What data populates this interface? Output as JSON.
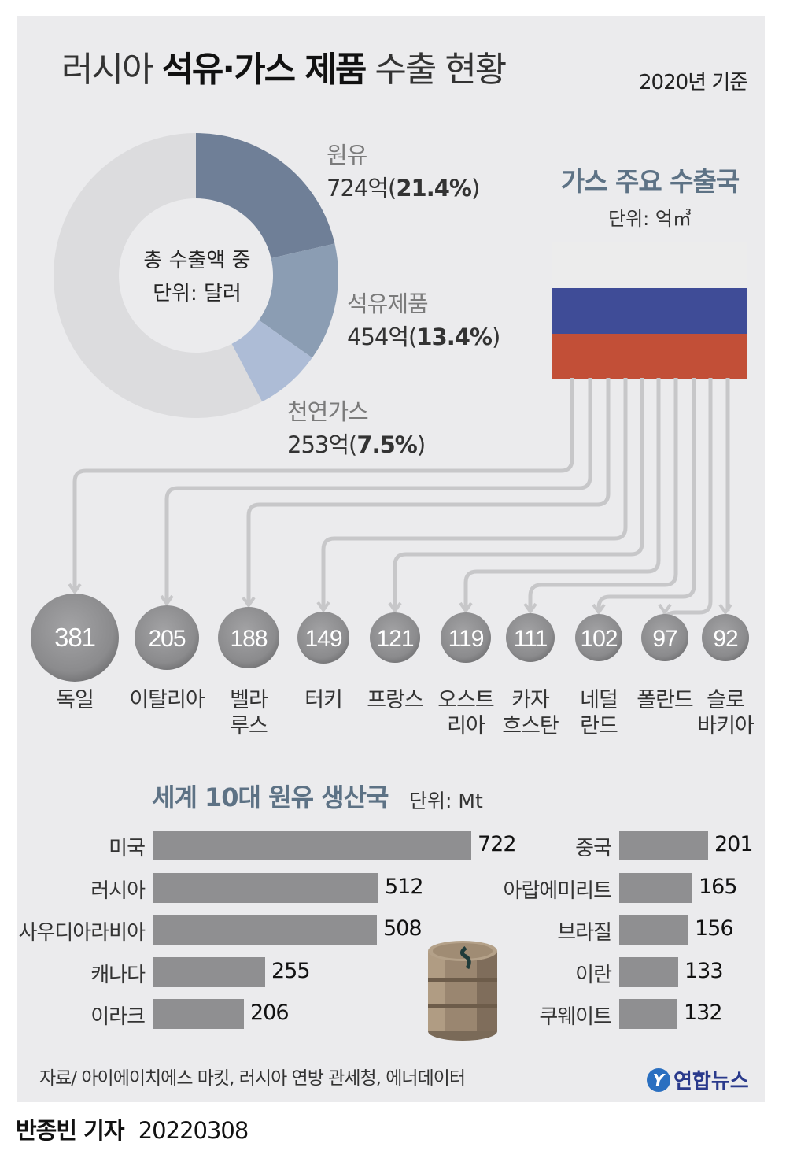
{
  "header": {
    "title_prefix": "러시아",
    "title_bold": "석유·가스 제품",
    "title_suffix": "수출 현황",
    "basis": "2020년 기준"
  },
  "donut": {
    "center_line1": "총 수출액 중",
    "center_line2": "단위: 달러",
    "segments": [
      {
        "name": "원유",
        "amount": "724억",
        "pct_text": "21.4%",
        "value": 21.4,
        "color": "#6f7f97"
      },
      {
        "name": "석유제품",
        "amount": "454억",
        "pct_text": "13.4%",
        "value": 13.4,
        "color": "#8b9db3"
      },
      {
        "name": "천연가스",
        "amount": "253억",
        "pct_text": "7.5%",
        "value": 7.5,
        "color": "#adbcd6"
      }
    ],
    "remainder_color": "#dcdcde"
  },
  "gas_exports": {
    "title": "가스 주요 수출국",
    "unit": "단위: 억㎥",
    "flag_colors": [
      "#ececec",
      "#3f4c97",
      "#c24f37"
    ]
  },
  "chart_data": [
    {
      "type": "pie",
      "title": "",
      "categories": [
        "원유",
        "석유제품",
        "천연가스"
      ],
      "values": [
        21.4,
        13.4,
        7.5
      ],
      "amounts": [
        "724억",
        "454억",
        "253억"
      ]
    },
    {
      "type": "bar",
      "title": "가스 주요 수출국",
      "unit": "단위: 억㎥",
      "categories": [
        "독일",
        "이탈리아",
        "벨라\n루스",
        "터키",
        "프랑스",
        "오스트\n리아",
        "카자\n흐스탄",
        "네덜\n란드",
        "폴란드",
        "슬로\n바키아"
      ],
      "values": [
        381,
        205,
        188,
        149,
        121,
        119,
        111,
        102,
        97,
        92
      ]
    },
    {
      "type": "bar",
      "title": "세계 10대 원유 생산국",
      "unit": "단위:  Mt",
      "categories": [
        "미국",
        "러시아",
        "사우디아라비아",
        "캐나다",
        "이라크",
        "중국",
        "아랍에미리트",
        "브라질",
        "이란",
        "쿠웨이트"
      ],
      "values": [
        722,
        512,
        508,
        255,
        206,
        201,
        165,
        156,
        133,
        132
      ]
    }
  ],
  "production": {
    "title": "세계 10대 원유 생산국",
    "unit": "단위:  Mt"
  },
  "footer": {
    "source": "자료/ 아이에이치에스 마킷, 러시아 연방 관세청, 에너데이터",
    "logo": "연합뉴스",
    "reporter": "반종빈 기자",
    "date": "20220308"
  }
}
